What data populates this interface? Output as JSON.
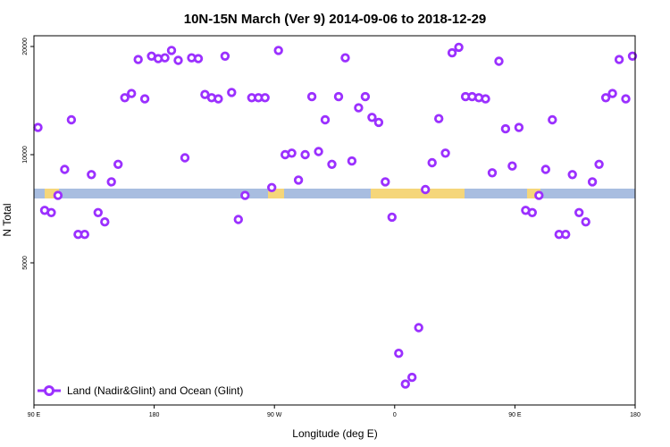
{
  "chart_data": {
    "type": "scatter",
    "title": "10N-15N March (Ver 9)   2014-09-06 to 2018-12-29",
    "xlabel": "Longitude (deg E)",
    "ylabel": "N Total",
    "x_ticks": [
      {
        "value": 0,
        "label": "90 E"
      },
      {
        "value": 90,
        "label": "180"
      },
      {
        "value": 180,
        "label": "90 W"
      },
      {
        "value": 270,
        "label": "0"
      },
      {
        "value": 360,
        "label": "90 E"
      },
      {
        "value": 450,
        "label": "180"
      }
    ],
    "y_ticks": [
      5000,
      10000,
      20000
    ],
    "xlim": [
      0,
      450
    ],
    "y_axis_mapping": {
      "note": "y axis is nonlinear (printed ticks 5000, 10000, 20000 equally spaced)"
    },
    "ylim_log": true,
    "legend_position": "bottom-left",
    "marker_color": "#9b30ff",
    "series": [
      {
        "name": "Land (Nadir&Glint) and Ocean (Glint)",
        "x": [
          3,
          8,
          13,
          18,
          23,
          28,
          33,
          38,
          43,
          48,
          53,
          58,
          63,
          68,
          73,
          78,
          83,
          88,
          93,
          98,
          103,
          108,
          113,
          118,
          123,
          128,
          133,
          138,
          143,
          148,
          153,
          158,
          163,
          168,
          173,
          178,
          183,
          188,
          193,
          198,
          203,
          208,
          213,
          218,
          223,
          228,
          233,
          238,
          243,
          248,
          253,
          258,
          263,
          268,
          273,
          278,
          283,
          288,
          293,
          298,
          303,
          308,
          313,
          318,
          323,
          328,
          333,
          338,
          343,
          348,
          353,
          358,
          363,
          368,
          373,
          378,
          383,
          388,
          393,
          398,
          403,
          408,
          413,
          418,
          423,
          428,
          433,
          438,
          443,
          448
        ],
        "y": [
          11900,
          7000,
          6900,
          7700,
          9100,
          12500,
          6000,
          6000,
          8800,
          6900,
          6500,
          8400,
          9400,
          14400,
          14800,
          18400,
          14300,
          18800,
          18500,
          18600,
          19500,
          18300,
          9800,
          18600,
          18500,
          14700,
          14400,
          14300,
          18800,
          14900,
          6600,
          7700,
          14400,
          14400,
          14400,
          8100,
          19500,
          10000,
          10100,
          8500,
          10000,
          14500,
          10200,
          12500,
          9400,
          14500,
          18600,
          9600,
          13500,
          14500,
          12700,
          12300,
          8400,
          6700,
          2800,
          2300,
          2400,
          3300,
          8000,
          9500,
          12600,
          10100,
          19200,
          19900,
          14500,
          14500,
          14400,
          14300,
          8900,
          18200,
          11800,
          9300,
          11900,
          7000,
          6900,
          7700,
          9100,
          12500,
          6000,
          6000,
          8800,
          6900,
          6500,
          8400,
          9400,
          14400,
          14800,
          18400,
          14300,
          18800
        ]
      }
    ]
  }
}
